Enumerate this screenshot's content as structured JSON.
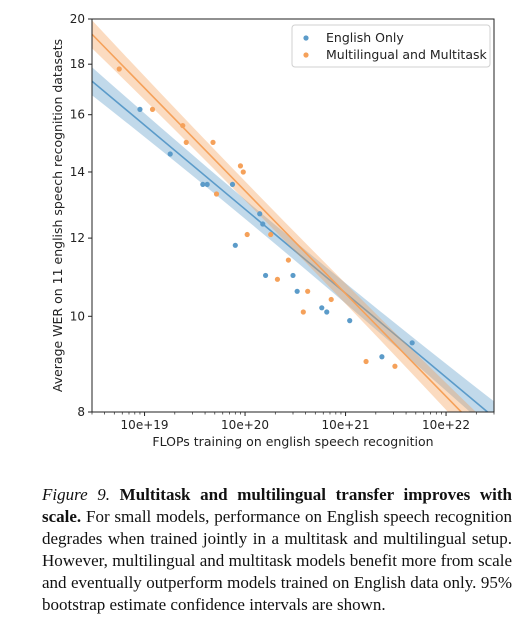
{
  "chart_data": {
    "type": "scatter",
    "xlabel": "FLOPs training on english speech recognition",
    "ylabel": "Average WER on 11 english speech recognition datasets",
    "x_scale": "log",
    "y_scale": "log",
    "xlim": [
      3e+18,
      3e+22
    ],
    "ylim": [
      8,
      20
    ],
    "x_ticks": [
      1e+19,
      1e+20,
      1e+21,
      1e+22
    ],
    "x_tick_labels": [
      "10e+19",
      "10e+20",
      "10e+21",
      "10e+22"
    ],
    "y_ticks": [
      8,
      10,
      12,
      14,
      16,
      18,
      20
    ],
    "y_tick_labels": [
      "8",
      "10",
      "12",
      "14",
      "16",
      "18",
      "20"
    ],
    "grid": false,
    "legend_position": "top-right",
    "series": [
      {
        "name": "English Only",
        "color": "#5b9bc9",
        "points": [
          [
            9e+18,
            16.2
          ],
          [
            1.8e+19,
            14.6
          ],
          [
            3.8e+19,
            13.6
          ],
          [
            4.2e+19,
            13.6
          ],
          [
            7.5e+19,
            13.6
          ],
          [
            8e+19,
            11.8
          ],
          [
            1.4e+20,
            12.7
          ],
          [
            1.5e+20,
            12.4
          ],
          [
            1.6e+20,
            11.0
          ],
          [
            3e+20,
            11.0
          ],
          [
            3.3e+20,
            10.6
          ],
          [
            5.8e+20,
            10.2
          ],
          [
            6.5e+20,
            10.1
          ],
          [
            1.1e+21,
            9.9
          ],
          [
            2.3e+21,
            9.1
          ],
          [
            4.6e+21,
            9.4
          ]
        ],
        "fit": [
          [
            3e+18,
            17.3
          ],
          [
            3e+22,
            7.9
          ]
        ]
      },
      {
        "name": "Multilingual and Multitask",
        "color": "#f5a15a",
        "points": [
          [
            5.6e+18,
            17.8
          ],
          [
            1.2e+19,
            16.2
          ],
          [
            2.4e+19,
            15.6
          ],
          [
            2.6e+19,
            15.0
          ],
          [
            4.8e+19,
            15.0
          ],
          [
            5.2e+19,
            13.3
          ],
          [
            9e+19,
            14.2
          ],
          [
            9.6e+19,
            14.0
          ],
          [
            1.05e+20,
            12.1
          ],
          [
            1.8e+20,
            12.1
          ],
          [
            2.1e+20,
            10.9
          ],
          [
            2.7e+20,
            11.4
          ],
          [
            3.8e+20,
            10.1
          ],
          [
            4.2e+20,
            10.6
          ],
          [
            7.2e+20,
            10.4
          ],
          [
            1.6e+21,
            9.0
          ],
          [
            3.1e+21,
            8.9
          ]
        ],
        "fit": [
          [
            3e+18,
            19.3
          ],
          [
            3e+22,
            7.4
          ]
        ]
      }
    ],
    "caption": {
      "label": "Figure 9.",
      "title": "Multitask and multilingual transfer improves with scale.",
      "text": "For small models, performance on English speech recognition degrades when trained jointly in a multitask and multilingual setup. However, multilingual and multitask models benefit more from scale and eventually outperform models trained on English data only. 95% bootstrap estimate confidence intervals are shown."
    }
  }
}
